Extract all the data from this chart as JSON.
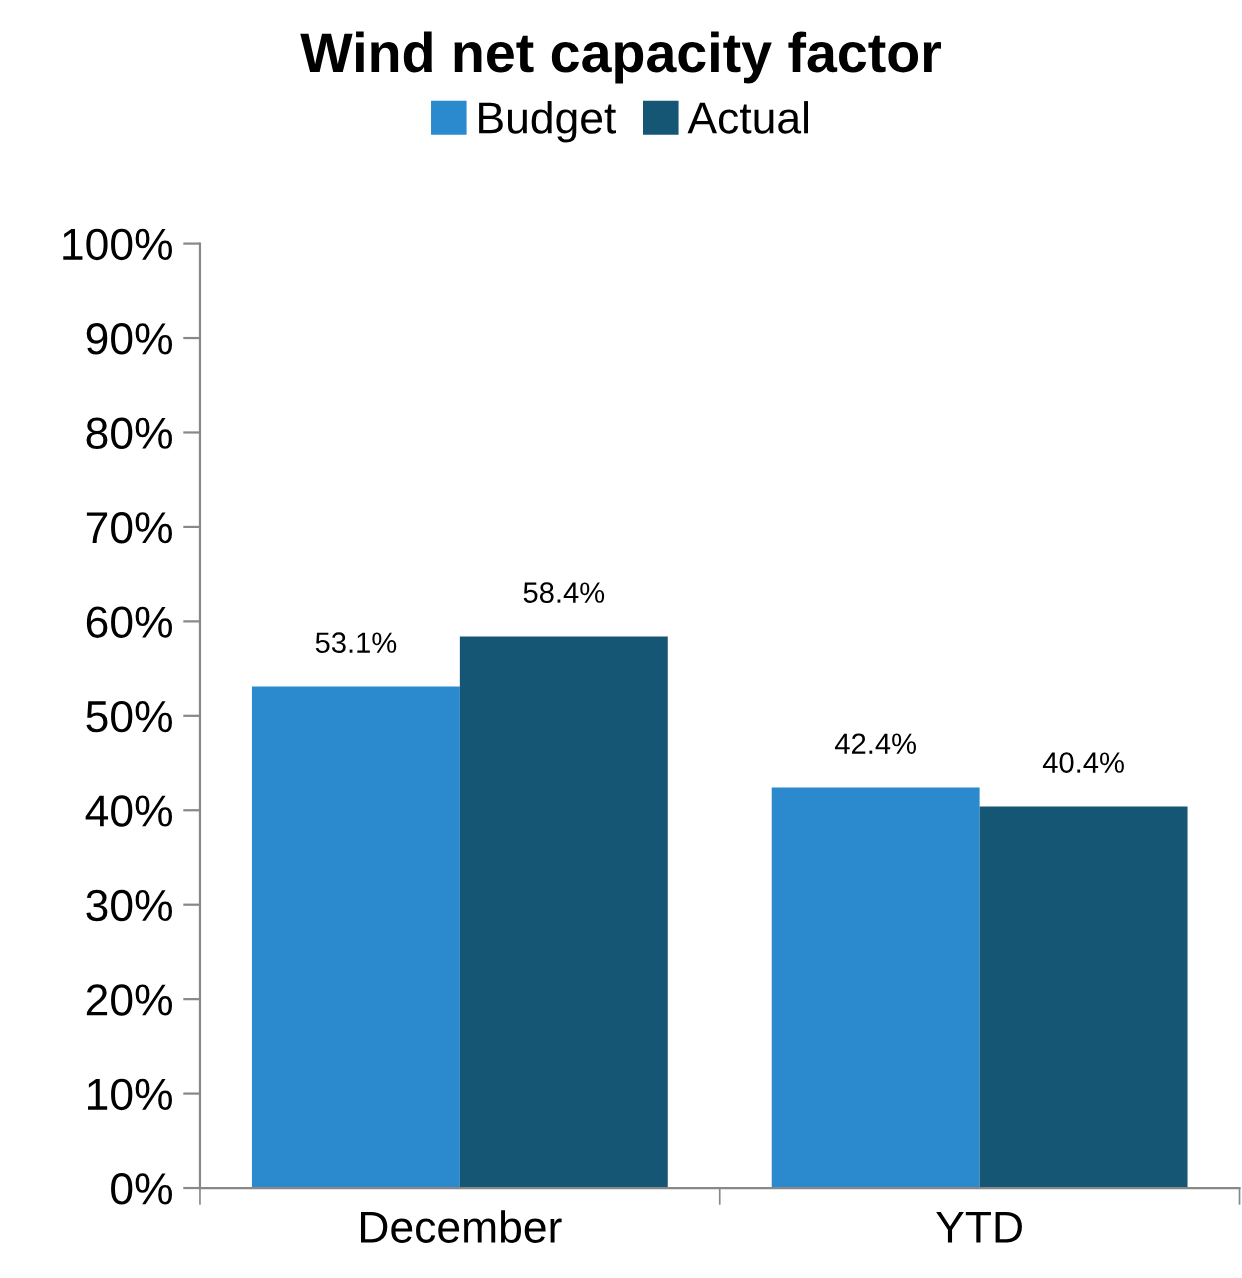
{
  "chart_data": {
    "type": "bar",
    "title": "Wind net capacity factor",
    "categories": [
      "December",
      "YTD"
    ],
    "series": [
      {
        "name": "Budget",
        "color": "#2b8acd",
        "values": [
          53.1,
          42.4
        ],
        "value_labels": [
          "53.1%",
          "42.4%"
        ]
      },
      {
        "name": "Actual",
        "color": "#155675",
        "values": [
          58.4,
          40.4
        ],
        "value_labels": [
          "58.4%",
          "40.4%"
        ]
      }
    ],
    "ylim": [
      0,
      100
    ],
    "yticks": [
      {
        "value": 0,
        "label": "0%"
      },
      {
        "value": 10,
        "label": "10%"
      },
      {
        "value": 20,
        "label": "20%"
      },
      {
        "value": 30,
        "label": "30%"
      },
      {
        "value": 40,
        "label": "40%"
      },
      {
        "value": 50,
        "label": "50%"
      },
      {
        "value": 60,
        "label": "60%"
      },
      {
        "value": 70,
        "label": "70%"
      },
      {
        "value": 80,
        "label": "80%"
      },
      {
        "value": 90,
        "label": "90%"
      },
      {
        "value": 100,
        "label": "100%"
      }
    ],
    "legend": "top",
    "grid": false
  }
}
